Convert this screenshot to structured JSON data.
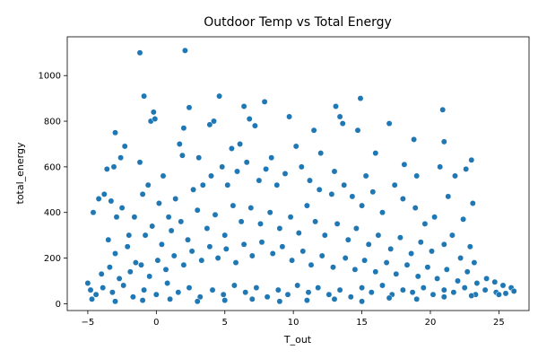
{
  "chart_data": {
    "type": "scatter",
    "title": "Outdoor Temp vs Total Energy",
    "xlabel": "T_out",
    "ylabel": "total_energy",
    "xlim": [
      -6.5,
      27.2
    ],
    "ylim": [
      -30,
      1170
    ],
    "xticks": [
      -5,
      0,
      5,
      10,
      15,
      20,
      25
    ],
    "yticks": [
      0,
      200,
      400,
      600,
      800,
      1000
    ],
    "grid": false,
    "legend": "none",
    "marker_color": "#1f77b4",
    "points": [
      [
        -1.2,
        1100
      ],
      [
        2.1,
        1110
      ],
      [
        -0.9,
        910
      ],
      [
        4.6,
        910
      ],
      [
        2.4,
        860
      ],
      [
        7.9,
        885
      ],
      [
        6.4,
        865
      ],
      [
        13.1,
        865
      ],
      [
        14.9,
        900
      ],
      [
        20.9,
        850
      ],
      [
        -0.2,
        840
      ],
      [
        -0.4,
        800
      ],
      [
        -0.1,
        810
      ],
      [
        -3.0,
        750
      ],
      [
        1.7,
        700
      ],
      [
        2.0,
        770
      ],
      [
        3.9,
        785
      ],
      [
        4.2,
        800
      ],
      [
        6.8,
        810
      ],
      [
        7.2,
        780
      ],
      [
        9.7,
        820
      ],
      [
        11.5,
        760
      ],
      [
        13.4,
        820
      ],
      [
        13.6,
        790
      ],
      [
        14.7,
        760
      ],
      [
        17.0,
        790
      ],
      [
        18.8,
        720
      ],
      [
        21.0,
        710
      ],
      [
        -2.3,
        690
      ],
      [
        -2.6,
        640
      ],
      [
        -3.1,
        600
      ],
      [
        -3.6,
        590
      ],
      [
        -1.2,
        620
      ],
      [
        0.5,
        560
      ],
      [
        1.9,
        650
      ],
      [
        3.1,
        640
      ],
      [
        5.5,
        680
      ],
      [
        6.1,
        700
      ],
      [
        8.4,
        640
      ],
      [
        10.2,
        690
      ],
      [
        12.0,
        660
      ],
      [
        13.0,
        580
      ],
      [
        15.3,
        560
      ],
      [
        16.0,
        660
      ],
      [
        18.1,
        610
      ],
      [
        19.0,
        560
      ],
      [
        20.7,
        600
      ],
      [
        22.6,
        590
      ],
      [
        23.0,
        630
      ],
      [
        -4.6,
        400
      ],
      [
        -4.2,
        460
      ],
      [
        -3.8,
        480
      ],
      [
        -3.3,
        450
      ],
      [
        -2.9,
        380
      ],
      [
        -2.5,
        420
      ],
      [
        -2.0,
        300
      ],
      [
        -1.6,
        380
      ],
      [
        -1.0,
        480
      ],
      [
        -0.6,
        520
      ],
      [
        0.2,
        440
      ],
      [
        0.9,
        380
      ],
      [
        1.4,
        460
      ],
      [
        2.7,
        500
      ],
      [
        3.4,
        520
      ],
      [
        4.0,
        560
      ],
      [
        4.8,
        600
      ],
      [
        5.2,
        520
      ],
      [
        5.9,
        580
      ],
      [
        6.6,
        620
      ],
      [
        7.5,
        540
      ],
      [
        8.0,
        590
      ],
      [
        8.8,
        520
      ],
      [
        9.4,
        570
      ],
      [
        10.6,
        600
      ],
      [
        11.2,
        540
      ],
      [
        11.9,
        500
      ],
      [
        12.8,
        480
      ],
      [
        13.7,
        520
      ],
      [
        14.3,
        470
      ],
      [
        15.0,
        430
      ],
      [
        15.8,
        490
      ],
      [
        16.5,
        400
      ],
      [
        17.4,
        520
      ],
      [
        18.0,
        460
      ],
      [
        18.9,
        420
      ],
      [
        19.6,
        350
      ],
      [
        20.3,
        380
      ],
      [
        21.3,
        470
      ],
      [
        21.8,
        560
      ],
      [
        22.4,
        370
      ],
      [
        23.1,
        440
      ],
      [
        -3.5,
        280
      ],
      [
        -3.0,
        220
      ],
      [
        -2.1,
        250
      ],
      [
        -1.5,
        180
      ],
      [
        -0.8,
        300
      ],
      [
        -0.3,
        340
      ],
      [
        0.4,
        260
      ],
      [
        1.1,
        320
      ],
      [
        1.8,
        360
      ],
      [
        2.3,
        280
      ],
      [
        3.0,
        410
      ],
      [
        3.7,
        330
      ],
      [
        4.3,
        390
      ],
      [
        5.0,
        300
      ],
      [
        5.6,
        430
      ],
      [
        6.2,
        360
      ],
      [
        6.9,
        420
      ],
      [
        7.6,
        350
      ],
      [
        8.3,
        400
      ],
      [
        9.0,
        330
      ],
      [
        9.8,
        380
      ],
      [
        10.4,
        310
      ],
      [
        11.0,
        430
      ],
      [
        11.6,
        360
      ],
      [
        12.3,
        300
      ],
      [
        13.2,
        350
      ],
      [
        14.0,
        280
      ],
      [
        14.6,
        330
      ],
      [
        15.5,
        260
      ],
      [
        16.2,
        300
      ],
      [
        17.1,
        240
      ],
      [
        17.8,
        290
      ],
      [
        18.6,
        220
      ],
      [
        19.3,
        270
      ],
      [
        20.1,
        230
      ],
      [
        21.0,
        260
      ],
      [
        21.6,
        300
      ],
      [
        22.2,
        200
      ],
      [
        22.9,
        250
      ],
      [
        23.2,
        180
      ],
      [
        -4.0,
        130
      ],
      [
        -3.4,
        160
      ],
      [
        -2.7,
        110
      ],
      [
        -1.9,
        140
      ],
      [
        -1.1,
        170
      ],
      [
        -0.5,
        120
      ],
      [
        0.1,
        190
      ],
      [
        0.7,
        150
      ],
      [
        1.3,
        210
      ],
      [
        2.0,
        170
      ],
      [
        2.6,
        230
      ],
      [
        3.3,
        190
      ],
      [
        3.9,
        250
      ],
      [
        4.5,
        200
      ],
      [
        5.1,
        240
      ],
      [
        5.8,
        180
      ],
      [
        6.4,
        260
      ],
      [
        7.0,
        210
      ],
      [
        7.7,
        270
      ],
      [
        8.5,
        220
      ],
      [
        9.2,
        250
      ],
      [
        9.9,
        190
      ],
      [
        10.7,
        230
      ],
      [
        11.3,
        170
      ],
      [
        12.1,
        210
      ],
      [
        12.9,
        160
      ],
      [
        13.8,
        200
      ],
      [
        14.5,
        150
      ],
      [
        15.2,
        190
      ],
      [
        16.0,
        140
      ],
      [
        16.8,
        180
      ],
      [
        17.5,
        130
      ],
      [
        18.3,
        170
      ],
      [
        19.1,
        120
      ],
      [
        19.8,
        160
      ],
      [
        20.5,
        110
      ],
      [
        21.2,
        150
      ],
      [
        22.0,
        100
      ],
      [
        22.7,
        140
      ],
      [
        23.4,
        90
      ],
      [
        24.1,
        110
      ],
      [
        24.7,
        95
      ],
      [
        25.3,
        80
      ],
      [
        25.9,
        70
      ],
      [
        -5.0,
        90
      ],
      [
        -4.8,
        60
      ],
      [
        -4.4,
        40
      ],
      [
        -3.9,
        70
      ],
      [
        -3.2,
        50
      ],
      [
        -2.4,
        80
      ],
      [
        -1.7,
        30
      ],
      [
        -0.9,
        60
      ],
      [
        0.0,
        40
      ],
      [
        0.8,
        90
      ],
      [
        1.6,
        50
      ],
      [
        2.4,
        70
      ],
      [
        3.2,
        30
      ],
      [
        4.1,
        60
      ],
      [
        4.9,
        40
      ],
      [
        5.7,
        80
      ],
      [
        6.5,
        50
      ],
      [
        7.3,
        70
      ],
      [
        8.1,
        30
      ],
      [
        8.9,
        60
      ],
      [
        9.6,
        40
      ],
      [
        10.3,
        80
      ],
      [
        11.1,
        50
      ],
      [
        11.8,
        70
      ],
      [
        12.6,
        40
      ],
      [
        13.4,
        60
      ],
      [
        14.2,
        30
      ],
      [
        15.0,
        70
      ],
      [
        15.7,
        50
      ],
      [
        16.5,
        80
      ],
      [
        17.2,
        40
      ],
      [
        18.0,
        60
      ],
      [
        18.7,
        50
      ],
      [
        19.5,
        70
      ],
      [
        20.2,
        40
      ],
      [
        21.0,
        60
      ],
      [
        21.7,
        50
      ],
      [
        22.5,
        70
      ],
      [
        23.3,
        40
      ],
      [
        24.0,
        60
      ],
      [
        24.8,
        50
      ],
      [
        25.5,
        45
      ],
      [
        26.1,
        55
      ],
      [
        -4.7,
        20
      ],
      [
        -3.0,
        10
      ],
      [
        -1.0,
        15
      ],
      [
        1.0,
        20
      ],
      [
        3.0,
        10
      ],
      [
        5.0,
        15
      ],
      [
        7.0,
        20
      ],
      [
        9.0,
        10
      ],
      [
        11.0,
        15
      ],
      [
        13.0,
        20
      ],
      [
        15.0,
        10
      ],
      [
        17.0,
        25
      ],
      [
        19.0,
        20
      ],
      [
        21.0,
        30
      ],
      [
        23.0,
        35
      ],
      [
        25.0,
        40
      ]
    ]
  }
}
